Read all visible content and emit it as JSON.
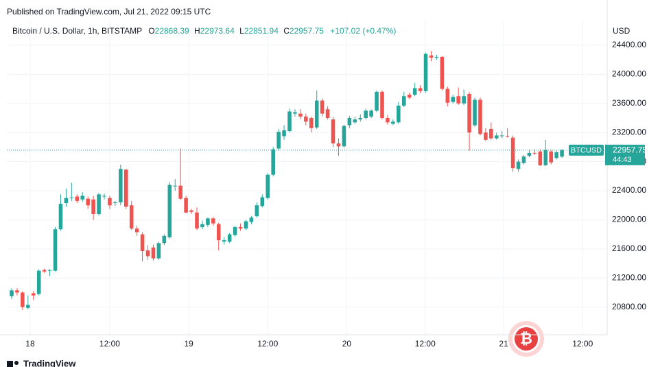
{
  "published": "Published on TradingView.com, Jul 21, 2022 09:15 UTC",
  "footer": "TradingView",
  "chart_data": {
    "type": "candlestick",
    "symbol": "Bitcoin / U.S. Dollar, 1h, BITSTAMP",
    "ohlc_header": {
      "open_label": "O",
      "open": 22868.39,
      "high_label": "H",
      "high": 22973.64,
      "low_label": "L",
      "low": 22851.94,
      "close_label": "C",
      "close": 22957.75,
      "change": "+107.02 (+0.47%)"
    },
    "y_axis_label": "USD",
    "ticker": "BTCUSD",
    "last_price": 22957.75,
    "countdown": "44:43",
    "up_color": "#26a69a",
    "down_color": "#ef5350",
    "grid": true,
    "open": [
      20950,
      21030,
      21000,
      20790,
      20990,
      20980,
      21310,
      21300,
      21300,
      21870,
      22230,
      22300,
      22320,
      22280,
      22290,
      22280,
      22080,
      22320,
      22300,
      22230,
      22240,
      22690,
      22200,
      21880,
      21800,
      21580,
      21620,
      21470,
      21680,
      21760,
      22460,
      22470,
      22300,
      22130,
      22100,
      21900,
      21930,
      22020,
      21940,
      21700,
      21700,
      21790,
      21900,
      21880,
      21970,
      22050,
      22190,
      22300,
      22620,
      22980,
      23150,
      23220,
      23460,
      23460,
      23420,
      23400,
      23270,
      23640,
      23520,
      23380,
      23050,
      23010,
      23300,
      23340,
      23380,
      23400,
      23420,
      23500,
      23760,
      23400,
      23320,
      23340,
      23570,
      23720,
      23720,
      23810,
      23770,
      24260,
      24230,
      24240,
      23800,
      23620,
      23700,
      23600,
      23730,
      23300,
      23650,
      23200,
      23250,
      23120,
      23150,
      23150,
      23130,
      22700,
      22780,
      22880,
      22920,
      22940,
      22750,
      22940,
      22850,
      22868.39
    ],
    "high": [
      21060,
      21060,
      21020,
      20960,
      21020,
      21320,
      21330,
      21320,
      21900,
      22350,
      22430,
      22510,
      22350,
      22380,
      22320,
      22330,
      22370,
      22360,
      22330,
      22260,
      22760,
      22700,
      22260,
      21920,
      21830,
      21650,
      21660,
      21700,
      21800,
      22520,
      22560,
      22980,
      22330,
      22150,
      22170,
      21990,
      22030,
      22040,
      21960,
      21760,
      21820,
      21920,
      21950,
      22000,
      22050,
      22240,
      22350,
      22640,
      23000,
      23250,
      23300,
      23530,
      23520,
      23520,
      23460,
      23420,
      23780,
      23670,
      23560,
      23420,
      23120,
      23310,
      23430,
      23420,
      23450,
      23530,
      23520,
      23780,
      23780,
      23440,
      23380,
      23620,
      23760,
      23750,
      23880,
      23850,
      24300,
      24320,
      24270,
      24250,
      23830,
      23720,
      23820,
      23790,
      23760,
      23680,
      23680,
      23260,
      23340,
      23200,
      23220,
      23260,
      23160,
      22830,
      22890,
      22960,
      22970,
      22970,
      23100,
      22960,
      22950,
      22973.64
    ],
    "low": [
      20910,
      20960,
      20760,
      20770,
      20900,
      20960,
      21270,
      21230,
      21290,
      21850,
      22180,
      22260,
      22230,
      22250,
      22150,
      22000,
      22060,
      22280,
      22150,
      22190,
      22200,
      22150,
      21860,
      21780,
      21430,
      21450,
      21440,
      21450,
      21650,
      21740,
      22400,
      22270,
      22090,
      22080,
      21860,
      21870,
      21900,
      21920,
      21580,
      21660,
      21680,
      21770,
      21850,
      21860,
      21940,
      22030,
      22170,
      22280,
      22600,
      22950,
      23100,
      23200,
      23420,
      23380,
      23300,
      23200,
      23250,
      23420,
      23380,
      23000,
      22880,
      22990,
      23260,
      23320,
      23350,
      23380,
      23400,
      23480,
      23380,
      23310,
      23300,
      23320,
      23550,
      23660,
      23700,
      23740,
      23750,
      24180,
      24200,
      23780,
      23560,
      23600,
      23580,
      23580,
      22950,
      23280,
      23160,
      23080,
      23100,
      23100,
      23120,
      23130,
      22660,
      22660,
      22760,
      22860,
      22890,
      22740,
      22740,
      22760,
      22830,
      22851.94
    ],
    "close": [
      21030,
      21000,
      20800,
      20830,
      20960,
      21300,
      21290,
      21310,
      21870,
      22220,
      22300,
      22310,
      22260,
      22330,
      22200,
      22080,
      22350,
      22330,
      22200,
      22240,
      22700,
      22180,
      21880,
      21830,
      21570,
      21500,
      21470,
      21680,
      21780,
      22480,
      22470,
      22290,
      22100,
      22110,
      21880,
      21940,
      22020,
      21950,
      21720,
      21720,
      21800,
      21900,
      21880,
      21980,
      22030,
      22200,
      22310,
      22620,
      22970,
      23210,
      23230,
      23490,
      23480,
      23420,
      23350,
      23260,
      23640,
      23460,
      23400,
      23050,
      23010,
      23290,
      23400,
      23380,
      23400,
      23500,
      23500,
      23760,
      23400,
      23340,
      23350,
      23570,
      23700,
      23680,
      23810,
      23770,
      24280,
      24230,
      24240,
      23800,
      23610,
      23690,
      23600,
      23700,
      23200,
      23650,
      23180,
      23100,
      23120,
      23160,
      23160,
      23140,
      22710,
      22800,
      22870,
      22920,
      22910,
      22750,
      22960,
      22790,
      22930,
      22957.75
    ],
    "xlim": [
      -0.88,
      109.3
    ],
    "xticks": [
      {
        "value": 3.4,
        "label": "18"
      },
      {
        "value": 18.0,
        "label": "12:00"
      },
      {
        "value": 32.5,
        "label": "19"
      },
      {
        "value": 47.0,
        "label": "12:00"
      },
      {
        "value": 61.5,
        "label": "20"
      },
      {
        "value": 75.9,
        "label": "12:00"
      },
      {
        "value": 90.3,
        "label": "21"
      },
      {
        "value": 104.8,
        "label": "12:00"
      }
    ],
    "ylim": [
      20420,
      24475
    ],
    "yticks": [
      {
        "value": 20800,
        "label": "20800.00"
      },
      {
        "value": 21200,
        "label": "21200.00"
      },
      {
        "value": 21600,
        "label": "21600.00"
      },
      {
        "value": 22000,
        "label": "22000.00"
      },
      {
        "value": 22400,
        "label": "22400.00"
      },
      {
        "value": 22800,
        "label": "22800.00"
      },
      {
        "value": 23200,
        "label": "23200.00"
      },
      {
        "value": 23600,
        "label": "23600.00"
      },
      {
        "value": 24000,
        "label": "24000.00"
      },
      {
        "value": 24400,
        "label": "24400.00"
      }
    ]
  }
}
